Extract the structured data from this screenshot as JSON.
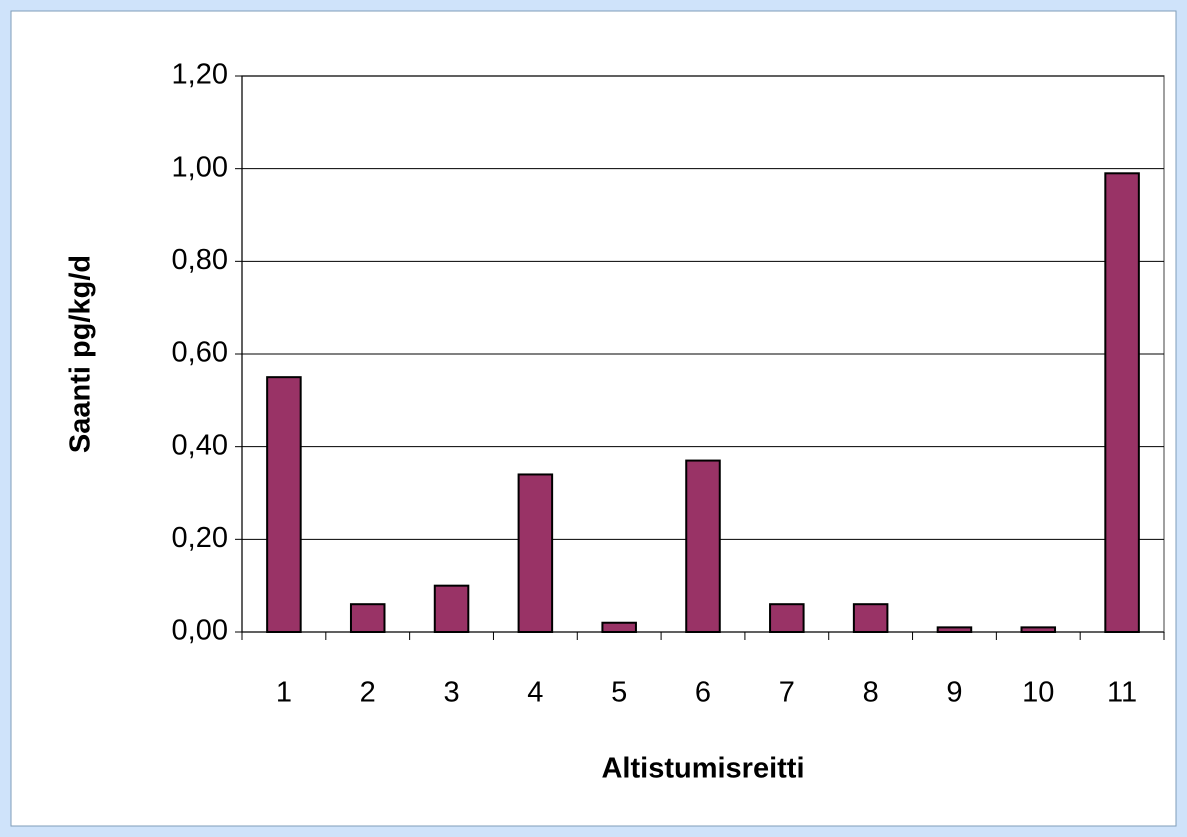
{
  "chart_data": {
    "type": "bar",
    "x_label": "Altistumisreitti",
    "y_label": "Saanti pg/kg/d",
    "categories": [
      "1",
      "2",
      "3",
      "4",
      "5",
      "6",
      "7",
      "8",
      "9",
      "10",
      "11"
    ],
    "values": [
      0.55,
      0.06,
      0.1,
      0.34,
      0.02,
      0.37,
      0.06,
      0.06,
      0.01,
      0.01,
      0.99
    ],
    "color": "#993366",
    "ylim": [
      0,
      1.2
    ],
    "yticks": [
      {
        "value": 0,
        "label": "0,00"
      },
      {
        "value": 0.2,
        "label": "0,20"
      },
      {
        "value": 0.4,
        "label": "0,40"
      },
      {
        "value": 0.6,
        "label": "0,60"
      },
      {
        "value": 0.8,
        "label": "0,80"
      },
      {
        "value": 1.0,
        "label": "1,00"
      },
      {
        "value": 1.2,
        "label": "1,20"
      }
    ],
    "grid": true
  }
}
